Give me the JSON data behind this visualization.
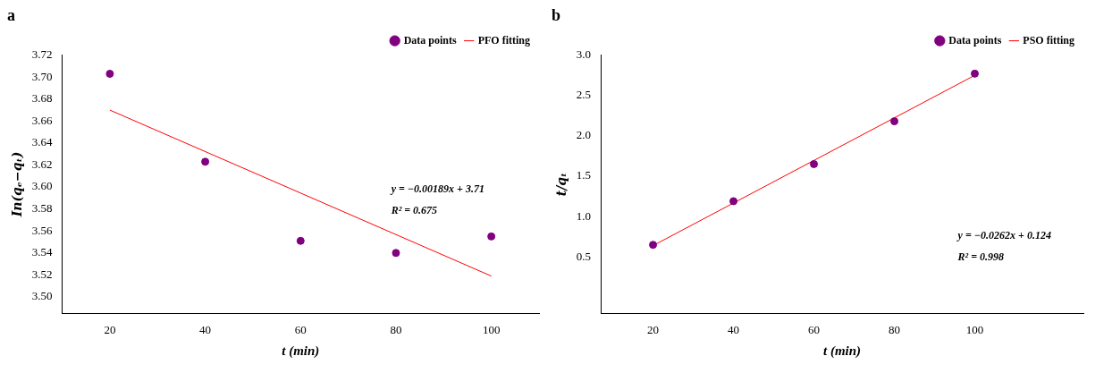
{
  "chart_data": [
    {
      "type": "scatter",
      "title": "a",
      "xlabel": "t (min)",
      "ylabel": "In(qₑ−qₜ)",
      "xlim": [
        10,
        110
      ],
      "xticks": [
        20,
        40,
        60,
        80,
        100
      ],
      "ylim": [
        3.485,
        3.72
      ],
      "yticks": [
        {
          "value": 3.5,
          "label": "3.50"
        },
        3.52,
        3.54,
        3.56,
        3.58,
        {
          "value": 3.6,
          "label": "3.60"
        },
        3.62,
        3.64,
        3.66,
        3.68,
        {
          "value": 3.7,
          "label": "3.70"
        },
        3.72
      ],
      "legend": "top right",
      "marker": "circle",
      "series": [
        {
          "name": "Data points",
          "type": "scatter",
          "color": "#800080",
          "x": [
            20,
            40,
            60,
            80,
            100
          ],
          "values": [
            3.703,
            3.623,
            3.551,
            3.54,
            3.555
          ]
        },
        {
          "name": "PFO fitting",
          "type": "line",
          "color": "#ff0000",
          "marker": "none",
          "x": [
            20,
            100
          ],
          "values": [
            3.67,
            3.519
          ]
        }
      ],
      "annotations": [
        "y = −0.00189x + 3.71",
        "R² = 0.675"
      ]
    },
    {
      "type": "scatter",
      "title": "b",
      "xlabel": "t (min)",
      "ylabel": "t/qₜ",
      "xlim": [
        7,
        127
      ],
      "xticks": [
        20,
        40,
        60,
        80,
        100
      ],
      "ylim": [
        -0.2,
        3.0
      ],
      "yticks": [
        {
          "value": 0.5,
          "label": "0.5"
        },
        {
          "value": 1,
          "label": "1.0"
        },
        {
          "value": 1.5,
          "label": "1.5"
        },
        {
          "value": 2,
          "label": "2.0"
        },
        {
          "value": 2.5,
          "label": "2.5"
        },
        {
          "value": 3,
          "label": "3.0"
        }
      ],
      "legend": "top right",
      "marker": "circle",
      "series": [
        {
          "name": "Data points",
          "type": "scatter",
          "color": "#800080",
          "x": [
            20,
            40,
            60,
            80,
            100
          ],
          "values": [
            0.65,
            1.19,
            1.65,
            2.18,
            2.77
          ]
        },
        {
          "name": "PSO fitting",
          "type": "line",
          "color": "#ff0000",
          "marker": "none",
          "x": [
            20,
            100
          ],
          "values": [
            0.64,
            2.75
          ]
        }
      ],
      "annotations": [
        "y = −0.0262x + 0.124",
        "R² = 0.998"
      ]
    }
  ]
}
